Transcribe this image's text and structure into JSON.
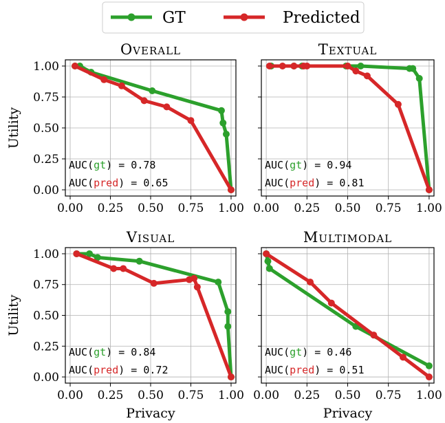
{
  "legend": {
    "items": [
      {
        "label": "GT",
        "color": "#2ca02c"
      },
      {
        "label": "Predicted",
        "color": "#d62728"
      }
    ]
  },
  "colors": {
    "gt": "#2ca02c",
    "pred": "#d62728",
    "grid": "#b0b0b0",
    "axis": "#000000"
  },
  "chart_data": [
    {
      "type": "line",
      "title": "Overall",
      "xlabel": "",
      "ylabel": "Utility",
      "xlim": [
        -0.03,
        1.03
      ],
      "ylim": [
        -0.05,
        1.05
      ],
      "xticks": [
        "0.00",
        "0.25",
        "0.50",
        "0.75",
        "1.00"
      ],
      "yticks": [
        "0.00",
        "0.25",
        "0.50",
        "0.75",
        "1.00"
      ],
      "grid": true,
      "series": [
        {
          "name": "GT",
          "color": "#2ca02c",
          "x": [
            0.03,
            0.06,
            0.13,
            0.51,
            0.94,
            0.95,
            0.97,
            1.0
          ],
          "y": [
            1.0,
            1.0,
            0.95,
            0.8,
            0.64,
            0.54,
            0.45,
            0.0
          ]
        },
        {
          "name": "Predicted",
          "color": "#d62728",
          "x": [
            0.03,
            0.21,
            0.32,
            0.46,
            0.6,
            0.75,
            1.0
          ],
          "y": [
            1.0,
            0.89,
            0.84,
            0.72,
            0.67,
            0.56,
            0.0
          ]
        }
      ],
      "annotations": {
        "gt_prefix": "AUC(",
        "gt_word": "gt",
        "gt_suffix": ") = 0.78",
        "pred_prefix": "AUC(",
        "pred_word": "pred",
        "pred_suffix": ") = 0.65"
      }
    },
    {
      "type": "line",
      "title": "Textual",
      "xlabel": "",
      "ylabel": "",
      "xlim": [
        -0.03,
        1.03
      ],
      "ylim": [
        -0.05,
        1.05
      ],
      "xticks": [
        "0.00",
        "0.25",
        "0.50",
        "0.75",
        "1.00"
      ],
      "yticks": [],
      "grid": true,
      "series": [
        {
          "name": "GT",
          "color": "#2ca02c",
          "x": [
            0.03,
            0.17,
            0.22,
            0.49,
            0.58,
            0.88,
            0.9,
            0.94,
            1.0
          ],
          "y": [
            1.0,
            1.0,
            1.0,
            1.0,
            1.0,
            0.98,
            0.98,
            0.9,
            0.0
          ]
        },
        {
          "name": "Predicted",
          "color": "#d62728",
          "x": [
            0.02,
            0.1,
            0.17,
            0.23,
            0.25,
            0.5,
            0.55,
            0.62,
            0.81,
            1.0
          ],
          "y": [
            1.0,
            1.0,
            1.0,
            1.0,
            1.0,
            1.0,
            0.96,
            0.92,
            0.69,
            0.0
          ]
        }
      ],
      "annotations": {
        "gt_prefix": "AUC(",
        "gt_word": "gt",
        "gt_suffix": ") = 0.94",
        "pred_prefix": "AUC(",
        "pred_word": "pred",
        "pred_suffix": ") = 0.81"
      }
    },
    {
      "type": "line",
      "title": "Visual",
      "xlabel": "Privacy",
      "ylabel": "Utility",
      "xlim": [
        -0.03,
        1.03
      ],
      "ylim": [
        -0.05,
        1.05
      ],
      "xticks": [
        "0.00",
        "0.25",
        "0.50",
        "0.75",
        "1.00"
      ],
      "yticks": [
        "0.00",
        "0.25",
        "0.50",
        "0.75",
        "1.00"
      ],
      "grid": true,
      "series": [
        {
          "name": "GT",
          "color": "#2ca02c",
          "x": [
            0.04,
            0.12,
            0.17,
            0.43,
            0.92,
            0.98,
            0.98,
            1.0
          ],
          "y": [
            1.0,
            1.0,
            0.97,
            0.94,
            0.77,
            0.53,
            0.41,
            0.0
          ]
        },
        {
          "name": "Predicted",
          "color": "#d62728",
          "x": [
            0.04,
            0.27,
            0.33,
            0.52,
            0.74,
            0.77,
            0.79,
            1.0
          ],
          "y": [
            1.0,
            0.88,
            0.88,
            0.76,
            0.79,
            0.8,
            0.73,
            0.0
          ]
        }
      ],
      "annotations": {
        "gt_prefix": "AUC(",
        "gt_word": "gt",
        "gt_suffix": ") = 0.84",
        "pred_prefix": "AUC(",
        "pred_word": "pred",
        "pred_suffix": ") = 0.72"
      }
    },
    {
      "type": "line",
      "title": "Multimodal",
      "xlabel": "Privacy",
      "ylabel": "",
      "xlim": [
        -0.03,
        1.03
      ],
      "ylim": [
        -0.05,
        1.05
      ],
      "xticks": [
        "0.00",
        "0.25",
        "0.50",
        "0.75",
        "1.00"
      ],
      "yticks": [],
      "grid": true,
      "series": [
        {
          "name": "GT",
          "color": "#2ca02c",
          "x": [
            0.0,
            0.01,
            0.02,
            0.55,
            1.0
          ],
          "y": [
            1.0,
            0.94,
            0.88,
            0.41,
            0.09
          ]
        },
        {
          "name": "Predicted",
          "color": "#d62728",
          "x": [
            0.0,
            0.27,
            0.4,
            0.66,
            0.84,
            1.0
          ],
          "y": [
            1.0,
            0.77,
            0.6,
            0.34,
            0.16,
            0.0
          ]
        }
      ],
      "annotations": {
        "gt_prefix": "AUC(",
        "gt_word": "gt",
        "gt_suffix": ") = 0.46",
        "pred_prefix": "AUC(",
        "pred_word": "pred",
        "pred_suffix": ") = 0.51"
      }
    }
  ]
}
